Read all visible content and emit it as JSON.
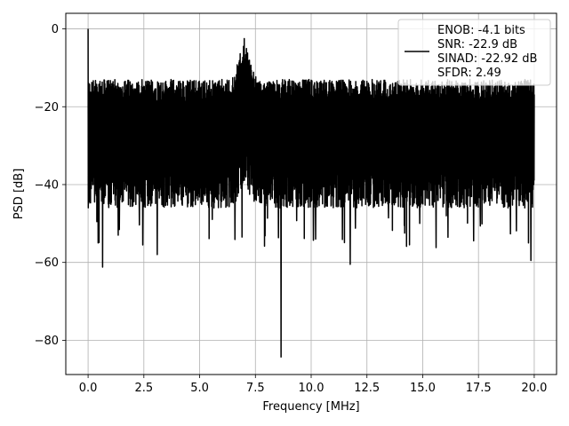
{
  "chart_data": {
    "type": "line",
    "title": "",
    "xlabel": "Frequency [MHz]",
    "ylabel": "PSD [dB]",
    "xlim": [
      -1.0,
      21.0
    ],
    "ylim": [
      -88.8,
      4.0
    ],
    "xticks": [
      0.0,
      2.5,
      5.0,
      7.5,
      10.0,
      12.5,
      15.0,
      17.5,
      20.0
    ],
    "xtick_labels": [
      "0.0",
      "2.5",
      "5.0",
      "7.5",
      "10.0",
      "12.5",
      "15.0",
      "17.5",
      "20.0"
    ],
    "yticks": [
      0,
      -20,
      -40,
      -60,
      -80
    ],
    "ytick_labels": [
      "0",
      "−20",
      "−40",
      "−60",
      "−80"
    ],
    "grid": true,
    "legend_position": "top-right",
    "legend_entries": [
      "ENOB: -4.1 bits",
      "SNR: -22.9 dB",
      "SINAD: -22.92 dB",
      "SFDR: 2.49"
    ],
    "series": [
      {
        "color": "#000000",
        "description": "Noisy power spectral density from 0 to 20 MHz, fluctuating roughly between -15 dB and -45 dB, with a spike to 0 dB at DC, a hump near 7 MHz reaching about -3 dB, and a deep notch near 8.6 MHz down to about -84 dB",
        "x_range": [
          0.0,
          20.0
        ],
        "envelope_upper": -13,
        "envelope_lower": -45,
        "features": [
          {
            "x": 0.0,
            "y": 0.0
          },
          {
            "x": 7.0,
            "y": -2.5
          },
          {
            "x": 8.65,
            "y": -84.3
          },
          {
            "x": 0.65,
            "y": -61.2
          },
          {
            "x": 11.75,
            "y": -60.5
          },
          {
            "x": 19.85,
            "y": -59.5
          },
          {
            "x": 15.6,
            "y": -56.2
          },
          {
            "x": 19.2,
            "y": -51.9
          },
          {
            "x": 2.45,
            "y": -55.5
          },
          {
            "x": 3.1,
            "y": -58.0
          },
          {
            "x": 0.45,
            "y": -55.0
          },
          {
            "x": 1.35,
            "y": -53.0
          },
          {
            "x": 6.9,
            "y": -53.5
          },
          {
            "x": 10.2,
            "y": -54.0
          }
        ]
      }
    ]
  }
}
